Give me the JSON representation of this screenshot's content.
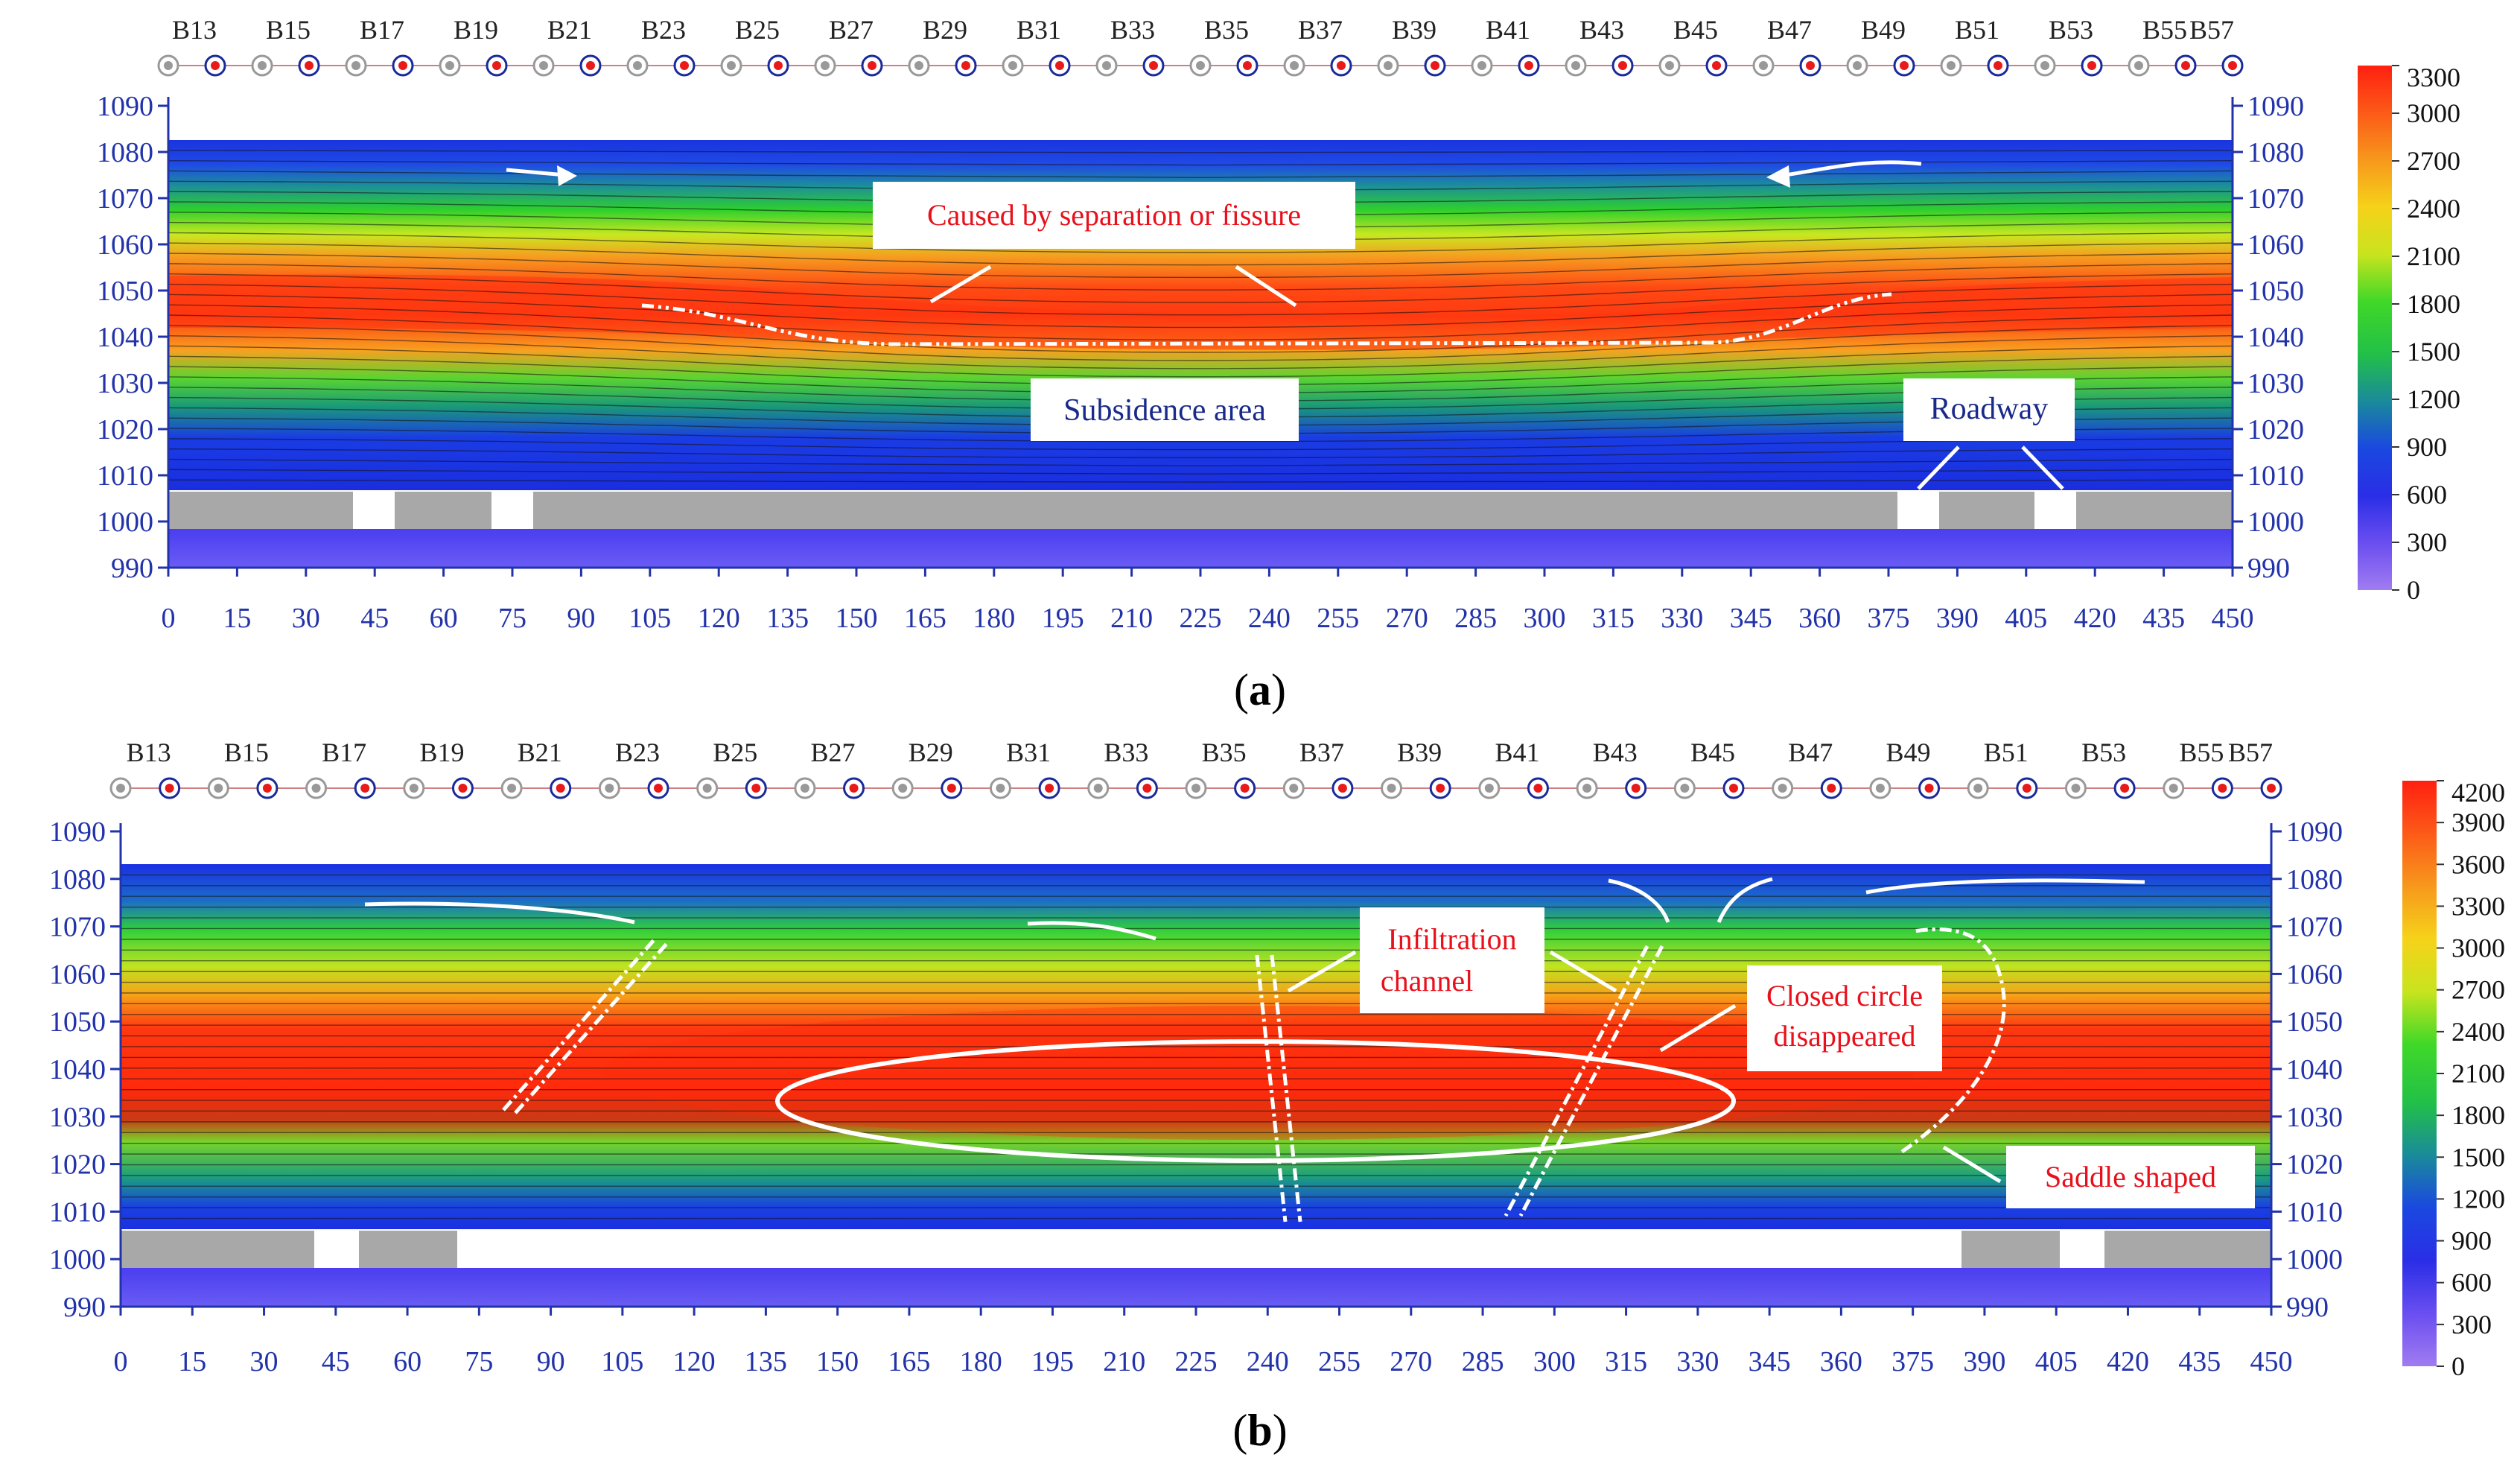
{
  "panels": [
    {
      "id": "a",
      "caption_letter": "a",
      "boreholes": [
        "B13",
        "B15",
        "B17",
        "B19",
        "B21",
        "B23",
        "B25",
        "B27",
        "B29",
        "B31",
        "B33",
        "B35",
        "B37",
        "B39",
        "B41",
        "B43",
        "B45",
        "B47",
        "B49",
        "B51",
        "B53",
        "B55",
        "B57"
      ],
      "x_ticks": [
        "0",
        "15",
        "30",
        "45",
        "60",
        "75",
        "90",
        "105",
        "120",
        "135",
        "150",
        "165",
        "180",
        "195",
        "210",
        "225",
        "240",
        "255",
        "270",
        "285",
        "300",
        "315",
        "330",
        "345",
        "360",
        "375",
        "390",
        "405",
        "420",
        "435",
        "450"
      ],
      "y_ticks": [
        "990",
        "1000",
        "1010",
        "1020",
        "1030",
        "1040",
        "1050",
        "1060",
        "1070",
        "1080",
        "1090"
      ],
      "colorbar_ticks": [
        "0",
        "300",
        "600",
        "900",
        "1200",
        "1500",
        "1800",
        "2100",
        "2400",
        "2700",
        "3000",
        "3300"
      ],
      "annotations": {
        "fissure": "Caused by separation or fissure",
        "subsidence": "Subsidence area",
        "roadway": "Roadway"
      }
    },
    {
      "id": "b",
      "caption_letter": "b",
      "boreholes": [
        "B13",
        "B15",
        "B17",
        "B19",
        "B21",
        "B23",
        "B25",
        "B27",
        "B29",
        "B31",
        "B33",
        "B35",
        "B37",
        "B39",
        "B41",
        "B43",
        "B45",
        "B47",
        "B49",
        "B51",
        "B53",
        "B55",
        "B57"
      ],
      "x_ticks": [
        "0",
        "15",
        "30",
        "45",
        "60",
        "75",
        "90",
        "105",
        "120",
        "135",
        "150",
        "165",
        "180",
        "195",
        "210",
        "225",
        "240",
        "255",
        "270",
        "285",
        "300",
        "315",
        "330",
        "345",
        "360",
        "375",
        "390",
        "405",
        "420",
        "435",
        "450"
      ],
      "y_ticks": [
        "990",
        "1000",
        "1010",
        "1020",
        "1030",
        "1040",
        "1050",
        "1060",
        "1070",
        "1080",
        "1090"
      ],
      "colorbar_ticks": [
        "0",
        "300",
        "600",
        "900",
        "1200",
        "1500",
        "1800",
        "2100",
        "2400",
        "2700",
        "3000",
        "3300",
        "3600",
        "3900",
        "4200"
      ],
      "annotations": {
        "infiltration_1": "Infiltration",
        "infiltration_2": "channel",
        "closed_1": "Closed circle",
        "closed_2": "disappeared",
        "saddle": "Saddle shaped"
      }
    }
  ],
  "colors": {
    "axis_blue": "#2233aa",
    "annotation_red": "#e8101a",
    "label_blue": "#1a2a8a",
    "gray_bar": "#a8a8a8"
  },
  "chart_data": [
    {
      "type": "heatmap",
      "panel": "a",
      "x": [
        0,
        450
      ],
      "xlim": [
        0,
        450
      ],
      "ylim": [
        990,
        1090
      ],
      "zlim": [
        0,
        3300
      ],
      "boreholes": [
        "B13",
        "B15",
        "B17",
        "B19",
        "B21",
        "B23",
        "B25",
        "B27",
        "B29",
        "B31",
        "B33",
        "B35",
        "B37",
        "B39",
        "B41",
        "B43",
        "B45",
        "B47",
        "B49",
        "B51",
        "B53",
        "B55",
        "B57"
      ],
      "annotations": [
        "Caused by separation or fissure",
        "Subsidence area",
        "Roadway"
      ]
    },
    {
      "type": "heatmap",
      "panel": "b",
      "x": [
        0,
        450
      ],
      "xlim": [
        0,
        450
      ],
      "ylim": [
        990,
        1090
      ],
      "zlim": [
        0,
        4200
      ],
      "boreholes": [
        "B13",
        "B15",
        "B17",
        "B19",
        "B21",
        "B23",
        "B25",
        "B27",
        "B29",
        "B31",
        "B33",
        "B35",
        "B37",
        "B39",
        "B41",
        "B43",
        "B45",
        "B47",
        "B49",
        "B51",
        "B53",
        "B55",
        "B57"
      ],
      "annotations": [
        "Infiltration channel",
        "Closed circle disappeared",
        "Saddle shaped"
      ]
    }
  ]
}
